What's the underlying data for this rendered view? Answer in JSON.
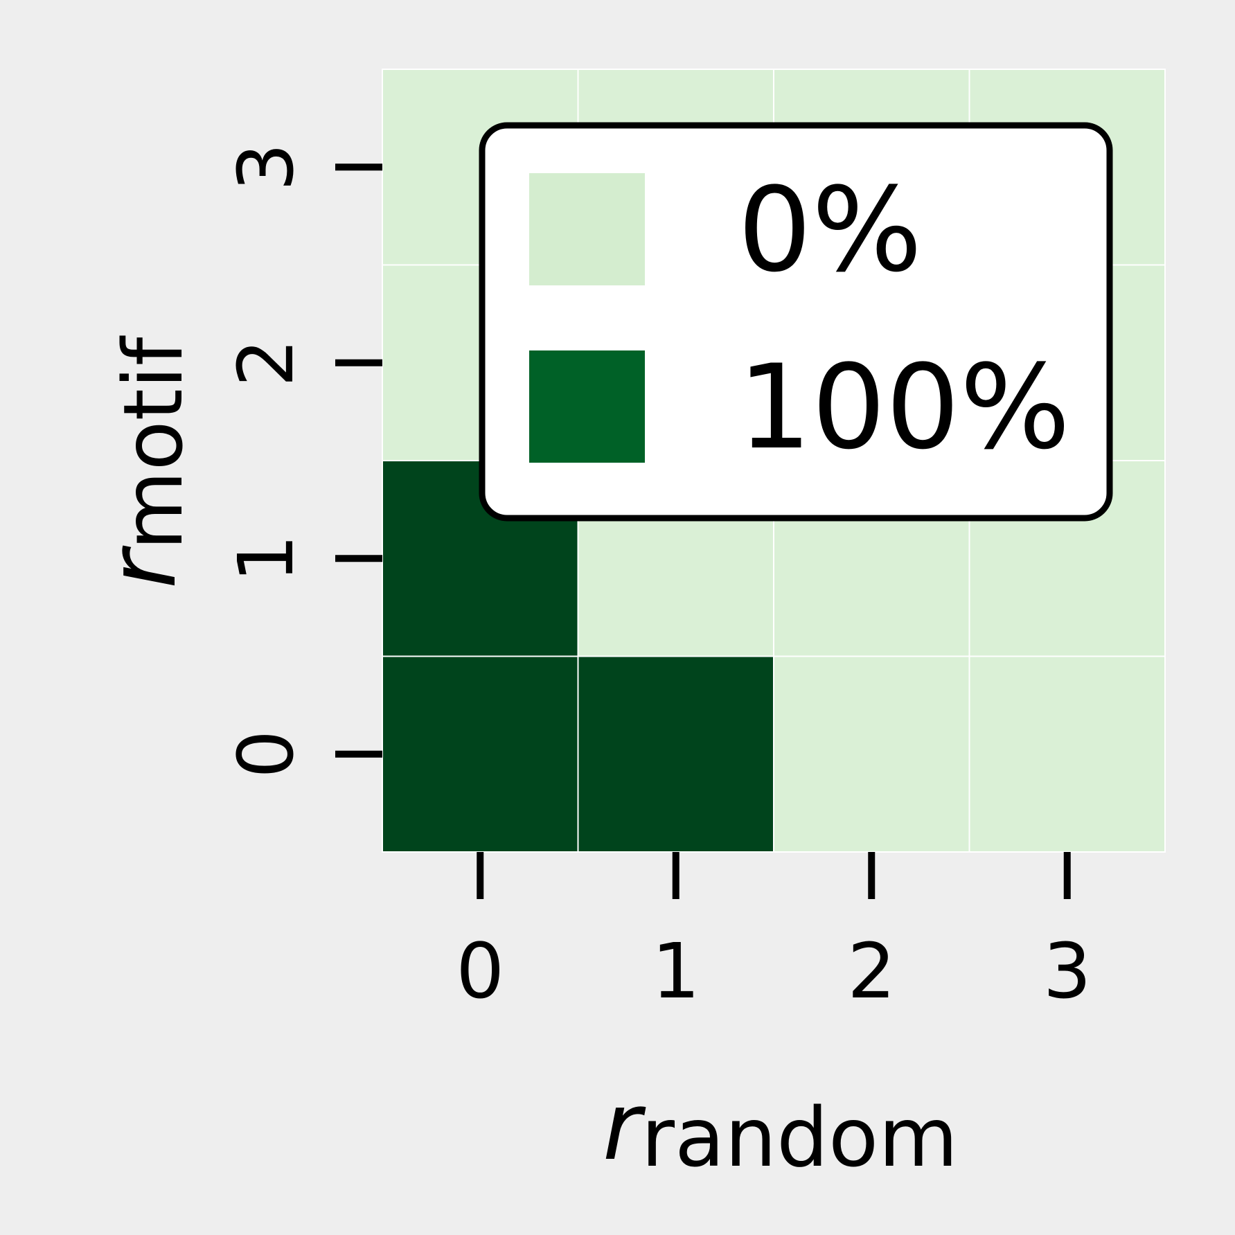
{
  "chart_data": {
    "type": "heatmap",
    "x_symbol": "r",
    "x_subscript": "random",
    "y_symbol": "r",
    "y_subscript": "motif",
    "x_ticks": [
      "0",
      "1",
      "2",
      "3"
    ],
    "y_ticks": [
      "0",
      "1",
      "2",
      "3"
    ],
    "x": [
      0,
      1,
      2,
      3
    ],
    "y": [
      0,
      1,
      2,
      3
    ],
    "values_percent": [
      [
        100,
        100,
        0,
        0
      ],
      [
        100,
        0,
        0,
        0
      ],
      [
        0,
        0,
        0,
        0
      ],
      [
        0,
        0,
        0,
        0
      ]
    ],
    "value_range": [
      0,
      100
    ],
    "colors": {
      "low_cell": "#daf0d6",
      "high_cell": "#00441c",
      "low_legend": "#d4edcf",
      "high_legend": "#006127",
      "cell_border": "#ffffff",
      "background": "#eeeeee"
    },
    "legend": {
      "placement": "top-right",
      "entries": [
        {
          "label": "0%",
          "color": "#d4edcf"
        },
        {
          "label": "100%",
          "color": "#006127"
        }
      ]
    },
    "grid": false
  }
}
